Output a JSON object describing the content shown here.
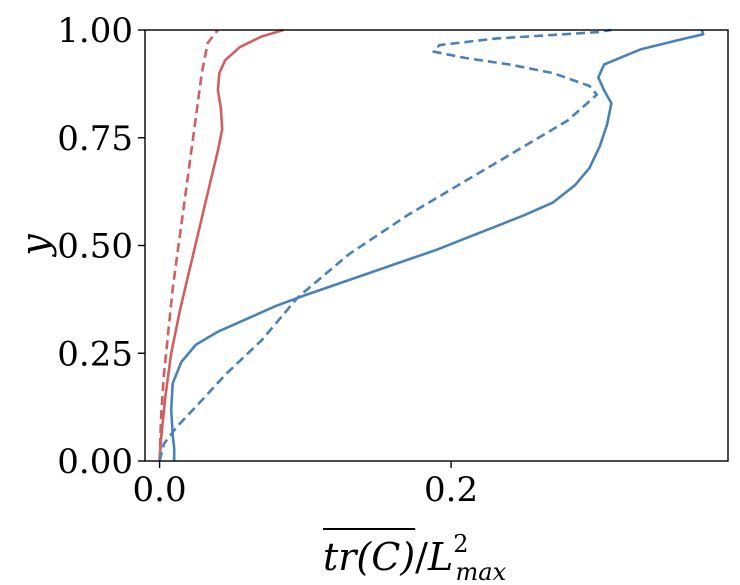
{
  "chart_data": {
    "type": "line",
    "title": "",
    "xlabel_parts": {
      "numerator": "tr(C)",
      "slash": "/",
      "symbol": "L",
      "superscript": "2",
      "subscript": "max"
    },
    "ylabel": "y",
    "xlim": [
      -0.01,
      0.39
    ],
    "ylim": [
      0.0,
      1.0
    ],
    "x_ticks": [
      0.0,
      0.2
    ],
    "x_tick_labels": [
      "0.0",
      "0.2"
    ],
    "y_ticks": [
      0.0,
      0.25,
      0.5,
      0.75,
      1.0
    ],
    "y_tick_labels": [
      "0.00",
      "0.25",
      "0.50",
      "0.75",
      "1.00"
    ],
    "grid": false,
    "legend": "none",
    "series": [
      {
        "color": "#d0605e",
        "style": "solid",
        "points": [
          [
            0.0,
            0.0
          ],
          [
            0.001,
            0.05
          ],
          [
            0.004,
            0.15
          ],
          [
            0.008,
            0.25
          ],
          [
            0.014,
            0.35
          ],
          [
            0.021,
            0.45
          ],
          [
            0.028,
            0.55
          ],
          [
            0.035,
            0.65
          ],
          [
            0.04,
            0.72
          ],
          [
            0.043,
            0.77
          ],
          [
            0.042,
            0.82
          ],
          [
            0.04,
            0.86
          ],
          [
            0.041,
            0.9
          ],
          [
            0.045,
            0.93
          ],
          [
            0.055,
            0.96
          ],
          [
            0.07,
            0.985
          ],
          [
            0.085,
            1.0
          ]
        ]
      },
      {
        "color": "#d0605e",
        "style": "dashed",
        "points": [
          [
            0.0,
            0.0
          ],
          [
            0.001,
            0.1
          ],
          [
            0.003,
            0.2
          ],
          [
            0.006,
            0.3
          ],
          [
            0.009,
            0.4
          ],
          [
            0.013,
            0.5
          ],
          [
            0.017,
            0.6
          ],
          [
            0.021,
            0.7
          ],
          [
            0.025,
            0.8
          ],
          [
            0.029,
            0.9
          ],
          [
            0.033,
            0.97
          ],
          [
            0.04,
            1.0
          ]
        ]
      },
      {
        "color": "#4a82b8",
        "style": "solid",
        "points": [
          [
            0.01,
            0.0
          ],
          [
            0.01,
            0.03
          ],
          [
            0.009,
            0.06
          ],
          [
            0.008,
            0.12
          ],
          [
            0.009,
            0.18
          ],
          [
            0.015,
            0.23
          ],
          [
            0.025,
            0.27
          ],
          [
            0.04,
            0.3
          ],
          [
            0.06,
            0.33
          ],
          [
            0.08,
            0.36
          ],
          [
            0.1,
            0.385
          ],
          [
            0.13,
            0.42
          ],
          [
            0.16,
            0.455
          ],
          [
            0.19,
            0.49
          ],
          [
            0.22,
            0.53
          ],
          [
            0.25,
            0.57
          ],
          [
            0.27,
            0.6
          ],
          [
            0.285,
            0.64
          ],
          [
            0.295,
            0.68
          ],
          [
            0.302,
            0.73
          ],
          [
            0.307,
            0.78
          ],
          [
            0.31,
            0.83
          ],
          [
            0.305,
            0.86
          ],
          [
            0.301,
            0.89
          ],
          [
            0.305,
            0.92
          ],
          [
            0.33,
            0.955
          ],
          [
            0.36,
            0.98
          ],
          [
            0.373,
            0.99
          ],
          [
            0.372,
            1.0
          ]
        ]
      },
      {
        "color": "#4a82b8",
        "style": "dashed",
        "points": [
          [
            0.0,
            0.0
          ],
          [
            0.003,
            0.04
          ],
          [
            0.012,
            0.08
          ],
          [
            0.026,
            0.13
          ],
          [
            0.045,
            0.2
          ],
          [
            0.07,
            0.28
          ],
          [
            0.095,
            0.38
          ],
          [
            0.13,
            0.48
          ],
          [
            0.17,
            0.57
          ],
          [
            0.21,
            0.65
          ],
          [
            0.25,
            0.73
          ],
          [
            0.28,
            0.79
          ],
          [
            0.3,
            0.85
          ],
          [
            0.295,
            0.87
          ],
          [
            0.27,
            0.9
          ],
          [
            0.24,
            0.92
          ],
          [
            0.21,
            0.935
          ],
          [
            0.188,
            0.95
          ],
          [
            0.192,
            0.965
          ],
          [
            0.23,
            0.98
          ],
          [
            0.3,
            0.995
          ],
          [
            0.31,
            1.0
          ]
        ]
      }
    ]
  }
}
